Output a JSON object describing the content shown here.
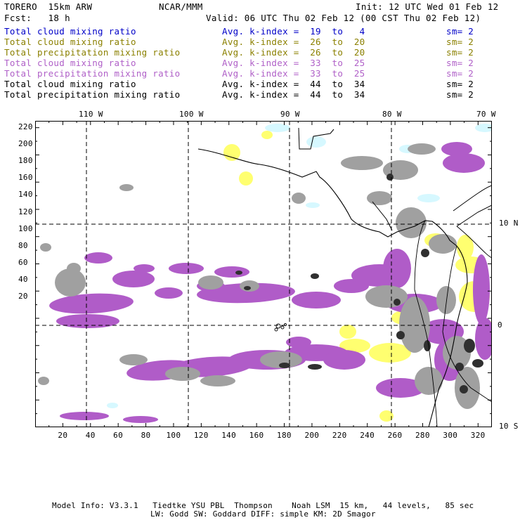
{
  "header": {
    "model": "TORERO  15km ARW",
    "org": "NCAR/MMM",
    "init": "Init: 12 UTC Wed 01 Feb 12",
    "fcst": "Fcst:   18 h",
    "valid": "Valid: 06 UTC Thu 02 Feb 12 (00 CST Thu 02 Feb 12)"
  },
  "legend": [
    {
      "field": "Total cloud mixing ratio",
      "index": "Avg. k-index =  19  to   4",
      "sm": "sm= 2",
      "color": "#0000c8"
    },
    {
      "field": "Total cloud mixing ratio",
      "index": "Avg. k-index =  26  to  20",
      "sm": "sm= 2",
      "color": "#8b8000"
    },
    {
      "field": "Total precipitation mixing ratio",
      "index": "Avg. k-index =  26  to  20",
      "sm": "sm= 2",
      "color": "#8b8000"
    },
    {
      "field": "Total cloud mixing ratio",
      "index": "Avg. k-index =  33  to  25",
      "sm": "sm= 2",
      "color": "#b060c8"
    },
    {
      "field": "Total precipitation mixing ratio",
      "index": "Avg. k-index =  33  to  25",
      "sm": "sm= 2",
      "color": "#b060c8"
    },
    {
      "field": "Total cloud mixing ratio",
      "index": "Avg. k-index =  44  to  34",
      "sm": "sm= 2",
      "color": "#000000"
    },
    {
      "field": "Total precipitation mixing ratio",
      "index": "Avg. k-index =  44  to  34",
      "sm": "sm= 2",
      "color": "#000000"
    }
  ],
  "map": {
    "top_lon_labels": [
      "110 W",
      "100 W",
      "90 W",
      "80 W",
      "70 W"
    ],
    "right_lat_labels": [
      "10 N",
      "0",
      "10 S"
    ],
    "y_ticks": [
      "220",
      "200",
      "180",
      "160",
      "140",
      "120",
      "100",
      "80",
      "60",
      "40",
      "20"
    ],
    "x_ticks": [
      "20",
      "40",
      "60",
      "80",
      "100",
      "120",
      "140",
      "160",
      "180",
      "200",
      "220",
      "240",
      "260",
      "280",
      "300",
      "320"
    ],
    "colors": {
      "yellow": "#ffff70",
      "cyan": "#d6f8ff",
      "purple": "#b05cc8",
      "gray": "#a0a0a0",
      "dark": "#303030"
    }
  },
  "footer": {
    "line1": "Model Info: V3.3.1   Tiedtke YSU PBL  Thompson    Noah LSM  15 km,   44 levels,   85 sec",
    "line2": "LW: Godd SW: Goddard DIFF: simple KM: 2D Smagor"
  }
}
